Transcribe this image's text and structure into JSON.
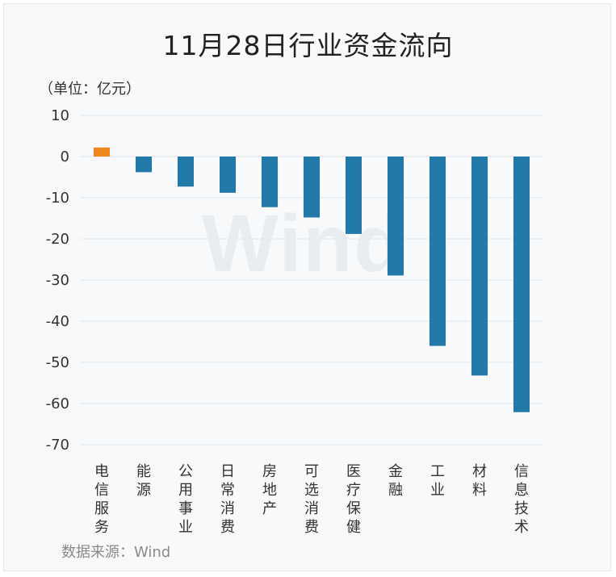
{
  "title": "11月28日行业资金流向",
  "unit_label": "（单位：亿元）",
  "source": "数据来源：Wind",
  "watermark": "Wind",
  "colors": {
    "positive": "#f0861e",
    "negative": "#2379a8",
    "grid": "#e3e6ea"
  },
  "chart_data": {
    "type": "bar",
    "title": "11月28日行业资金流向",
    "ylabel": "（单位：亿元）",
    "xlabel": "",
    "categories": [
      "电信服务",
      "能源",
      "公用事业",
      "日常消费",
      "房地产",
      "可选消费",
      "医疗保健",
      "金融",
      "工业",
      "材料",
      "信息技术"
    ],
    "values": [
      2.2,
      -3.8,
      -7.3,
      -8.8,
      -12.3,
      -14.8,
      -18.8,
      -28.9,
      -46.0,
      -53.2,
      -62.1
    ],
    "ylim": [
      -70,
      10
    ],
    "yticks": [
      10,
      0,
      -10,
      -20,
      -30,
      -40,
      -50,
      -60,
      -70
    ],
    "grid": true,
    "legend": "none"
  }
}
